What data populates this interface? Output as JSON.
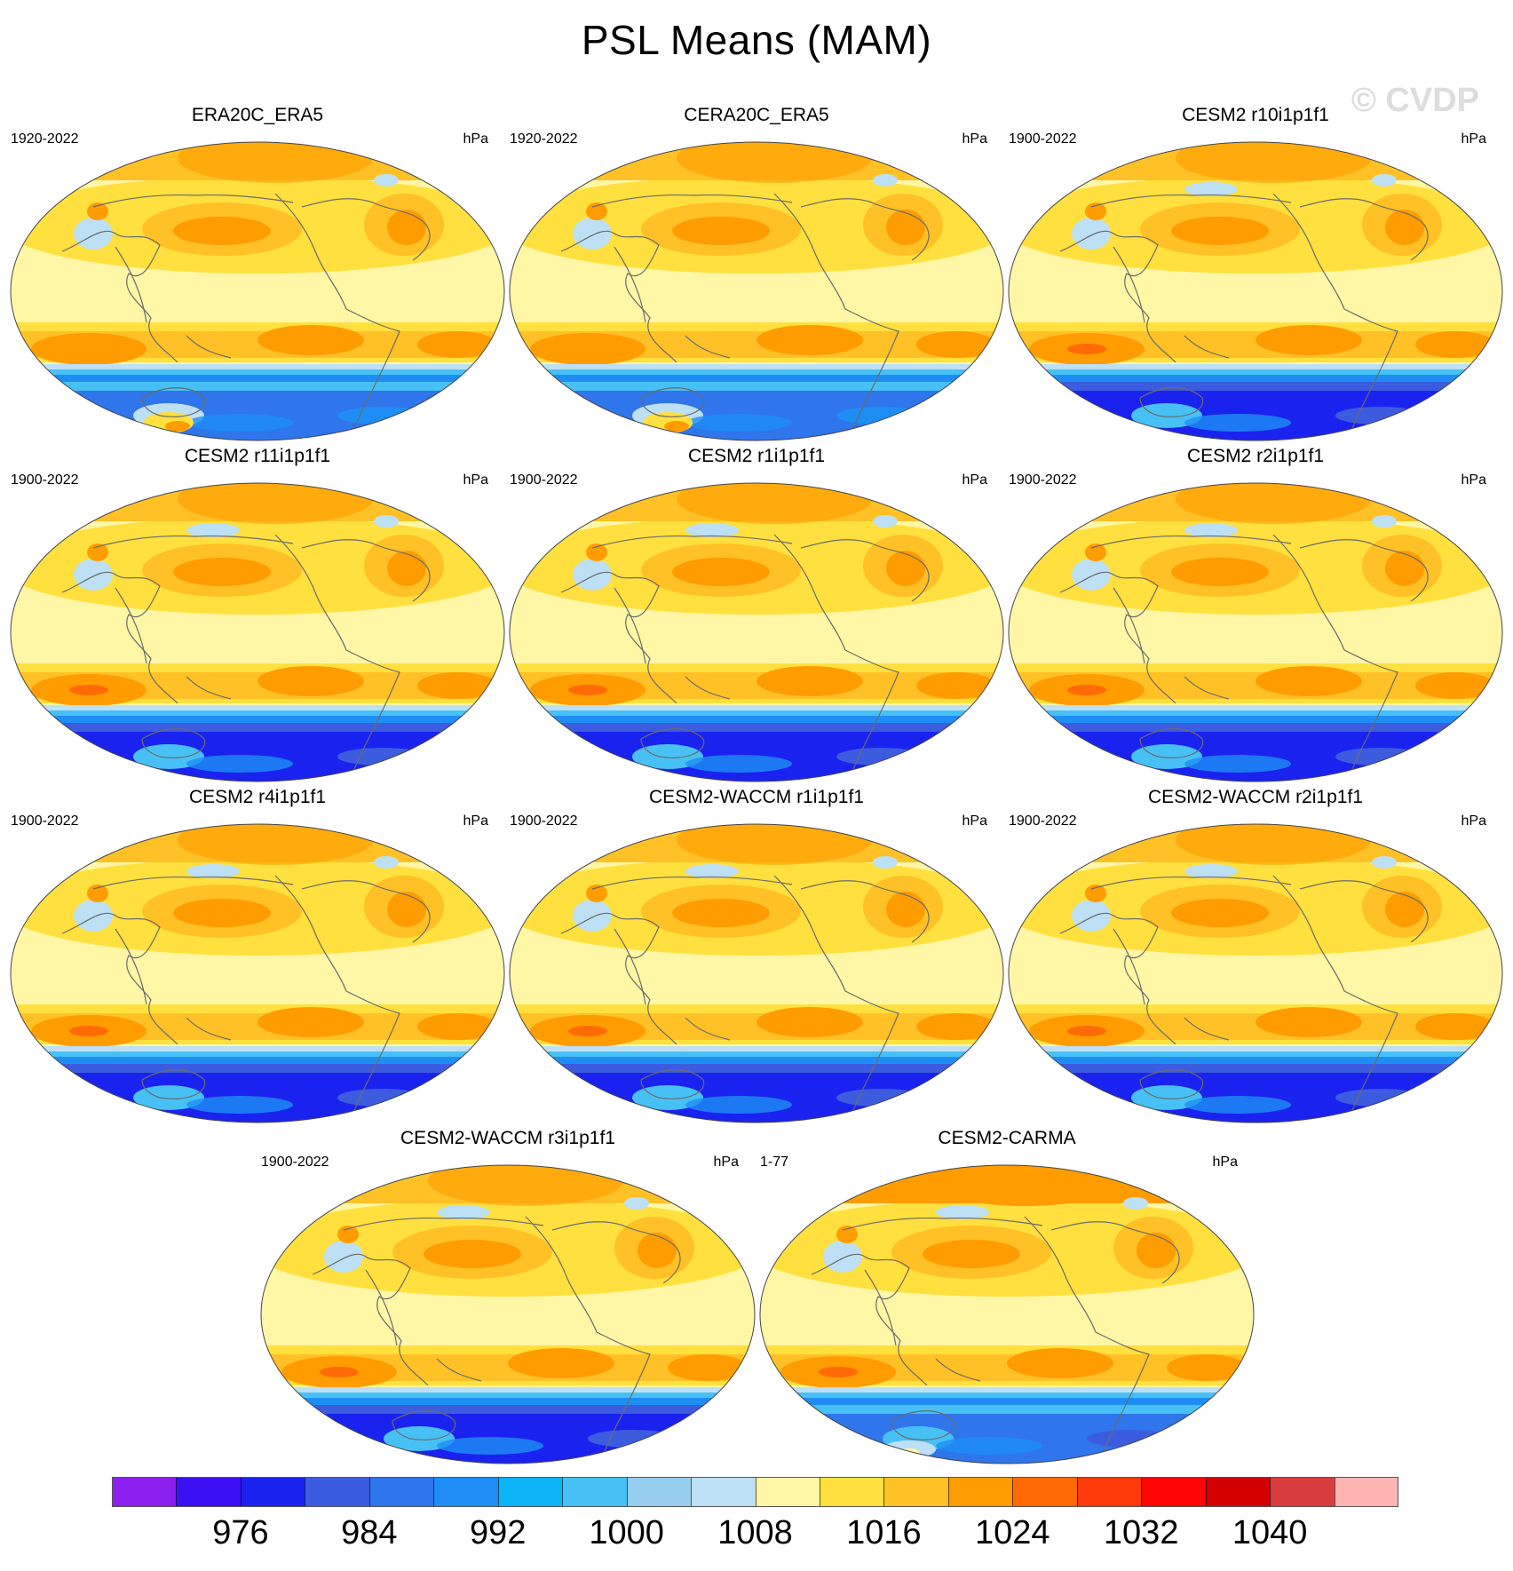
{
  "title": "PSL Means (MAM)",
  "watermark": "© CVDP",
  "panels": [
    {
      "title": "ERA20C_ERA5",
      "period": "1920-2022",
      "units": "hPa",
      "antarctica": "light"
    },
    {
      "title": "CERA20C_ERA5",
      "period": "1920-2022",
      "units": "hPa",
      "antarctica": "light"
    },
    {
      "title": "CESM2 r10i1p1f1",
      "period": "1900-2022",
      "units": "hPa",
      "antarctica": "dark"
    },
    {
      "title": "CESM2 r11i1p1f1",
      "period": "1900-2022",
      "units": "hPa",
      "antarctica": "dark"
    },
    {
      "title": "CESM2 r1i1p1f1",
      "period": "1900-2022",
      "units": "hPa",
      "antarctica": "dark"
    },
    {
      "title": "CESM2 r2i1p1f1",
      "period": "1900-2022",
      "units": "hPa",
      "antarctica": "dark"
    },
    {
      "title": "CESM2 r4i1p1f1",
      "period": "1900-2022",
      "units": "hPa",
      "antarctica": "dark"
    },
    {
      "title": "CESM2-WACCM r1i1p1f1",
      "period": "1900-2022",
      "units": "hPa",
      "antarctica": "dark"
    },
    {
      "title": "CESM2-WACCM r2i1p1f1",
      "period": "1900-2022",
      "units": "hPa",
      "antarctica": "dark"
    },
    {
      "title": "CESM2-WACCM r3i1p1f1",
      "period": "1900-2022",
      "units": "hPa",
      "antarctica": "dark"
    },
    {
      "title": "CESM2-CARMA",
      "period": "1-77",
      "units": "hPa",
      "antarctica": "carma"
    }
  ],
  "colorbar": {
    "colors": [
      "#8a1ff0",
      "#3c0ff5",
      "#1a22f0",
      "#3c5ce0",
      "#2f75ec",
      "#1e8ef5",
      "#0bb4f7",
      "#47c1f5",
      "#97cef0",
      "#bde0f5",
      "#fff7a6",
      "#ffe03e",
      "#ffc125",
      "#ff9c00",
      "#ff6a06",
      "#ff3a0a",
      "#ff0505",
      "#d20000",
      "#d83c3c",
      "#ffb4b4"
    ],
    "labels": [
      "976",
      "984",
      "992",
      "1000",
      "1008",
      "1016",
      "1024",
      "1032",
      "1040"
    ],
    "label_boundaries": [
      2,
      4,
      6,
      8,
      10,
      12,
      14,
      16,
      18
    ]
  }
}
